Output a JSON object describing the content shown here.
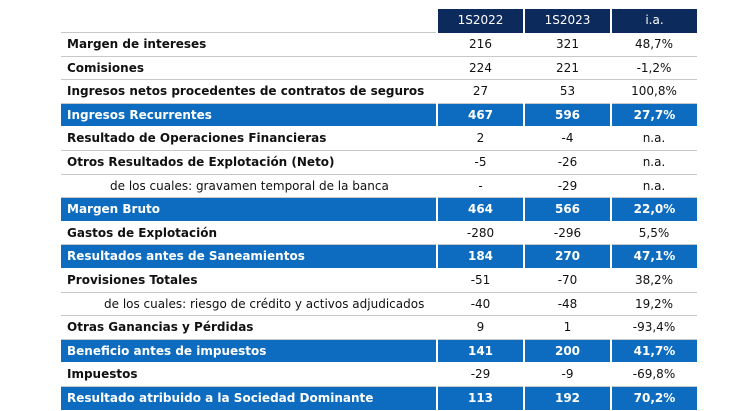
{
  "table": {
    "headers": [
      "1S2022",
      "1S2023",
      "i.a."
    ],
    "rows": [
      {
        "label": "Margen de intereses",
        "v1": "216",
        "v2": "321",
        "v3": "48,7%",
        "type": "bold"
      },
      {
        "label": "Comisiones",
        "v1": "224",
        "v2": "221",
        "v3": "-1,2%",
        "type": "bold"
      },
      {
        "label": "Ingresos netos procedentes de contratos de seguros",
        "v1": "27",
        "v2": "53",
        "v3": "100,8%",
        "type": "bold"
      },
      {
        "label": "Ingresos Recurrentes",
        "v1": "467",
        "v2": "596",
        "v3": "27,7%",
        "type": "highlight"
      },
      {
        "label": "Resultado de Operaciones Financieras",
        "v1": "2",
        "v2": "-4",
        "v3": "n.a.",
        "type": "bold"
      },
      {
        "label": "Otros Resultados de Explotación (Neto)",
        "v1": "-5",
        "v2": "-26",
        "v3": "n.a.",
        "type": "bold"
      },
      {
        "label": "de los cuales: gravamen temporal de la banca",
        "v1": "-",
        "v2": "-29",
        "v3": "n.a.",
        "type": "sub"
      },
      {
        "label": "Margen Bruto",
        "v1": "464",
        "v2": "566",
        "v3": "22,0%",
        "type": "highlight"
      },
      {
        "label": "Gastos de Explotación",
        "v1": "-280",
        "v2": "-296",
        "v3": "5,5%",
        "type": "bold"
      },
      {
        "label": "Resultados antes de Saneamientos",
        "v1": "184",
        "v2": "270",
        "v3": "47,1%",
        "type": "highlight"
      },
      {
        "label": "Provisiones Totales",
        "v1": "-51",
        "v2": "-70",
        "v3": "38,2%",
        "type": "bold"
      },
      {
        "label": "de los cuales: riesgo de crédito y activos adjudicados",
        "v1": "-40",
        "v2": "-48",
        "v3": "19,2%",
        "type": "sub2"
      },
      {
        "label": "Otras Ganancias y Pérdidas",
        "v1": "9",
        "v2": "1",
        "v3": "-93,4%",
        "type": "bold"
      },
      {
        "label": "Beneficio antes de impuestos",
        "v1": "141",
        "v2": "200",
        "v3": "41,7%",
        "type": "highlight"
      },
      {
        "label": "Impuestos",
        "v1": "-29",
        "v2": "-9",
        "v3": "-69,8%",
        "type": "bold"
      },
      {
        "label": "Resultado atribuido a la Sociedad Dominante",
        "v1": "113",
        "v2": "192",
        "v3": "70,2%",
        "type": "highlight"
      }
    ]
  },
  "colors": {
    "header_bg": "#0d2a5c",
    "highlight_bg": "#0d6cbf"
  }
}
